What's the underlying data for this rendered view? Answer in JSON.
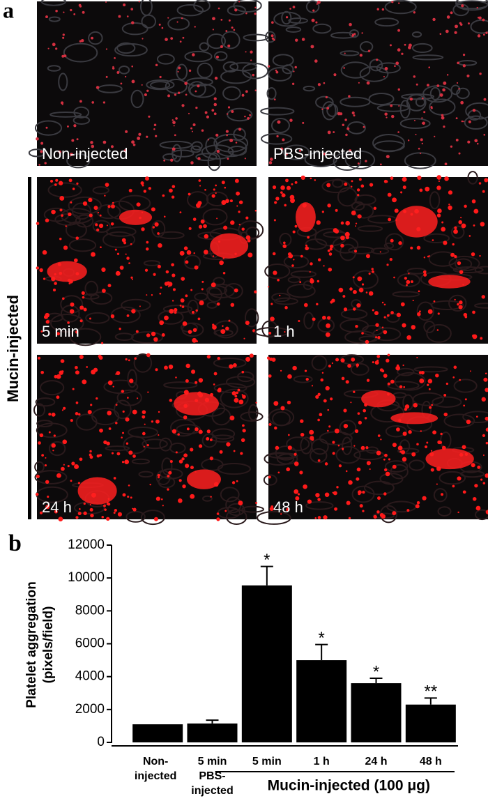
{
  "panel_a": {
    "label": "a",
    "group_label": "Mucin-injected",
    "images": [
      "Non-injected",
      "PBS-injected",
      "5 min",
      "1 h",
      "24 h",
      "48 h"
    ]
  },
  "chart_data": {
    "type": "bar",
    "panel_label": "b",
    "y_label": [
      "Platelet aggregation",
      "(pixels/field)"
    ],
    "categories": [
      [
        "Non-",
        "injected"
      ],
      [
        "5 min",
        "PBS-",
        "injected"
      ],
      [
        "5 min"
      ],
      [
        "1 h"
      ],
      [
        "24 h"
      ],
      [
        "48 h"
      ]
    ],
    "values": [
      1100,
      1150,
      9550,
      5000,
      3600,
      2300
    ],
    "errors": [
      0,
      200,
      1150,
      950,
      300,
      400
    ],
    "annotations": [
      null,
      null,
      "*",
      "*",
      "*",
      "**"
    ],
    "group_label": "Mucin-injected (100 μg)",
    "color": "#000000",
    "ylim": [
      0,
      12000
    ],
    "yticks": [
      0,
      2000,
      4000,
      6000,
      8000,
      10000,
      12000
    ]
  }
}
